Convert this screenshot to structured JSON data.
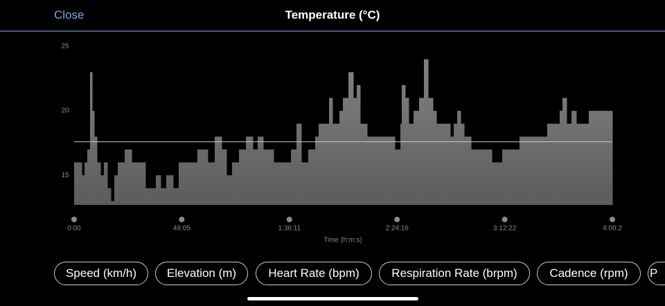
{
  "header": {
    "close": "Close",
    "title": "Temperature (°C)"
  },
  "chart_data": {
    "type": "step-area",
    "x_label": "Time (h:m:s)",
    "x": [
      0,
      204,
      279,
      353,
      427,
      483,
      538,
      613,
      706,
      798,
      891,
      984,
      1077,
      1170,
      1355,
      1541,
      1912,
      2191,
      2321,
      2469,
      2655,
      2804,
      3026,
      3305,
      3583,
      3769,
      3955,
      4085,
      4233,
      4419,
      4605,
      4790,
      4920,
      5069,
      5347,
      5533,
      5812,
      5960,
      6090,
      6276,
      6461,
      6554,
      6740,
      6833,
      6925,
      7111,
      7204,
      7353,
      7483,
      7575,
      7668,
      7761,
      7854,
      8411,
      8597,
      8745,
      8782,
      8875,
      8968,
      9098,
      9246,
      9376,
      9488,
      9618,
      9711,
      10082,
      10175,
      10268,
      10361,
      10454,
      10640,
      11196,
      11475,
      11846,
      11938,
      12310,
      12681,
      12867,
      13015,
      13090,
      13201,
      13332,
      13461,
      13795,
      14427
    ],
    "values": [
      16,
      15,
      16,
      17,
      23,
      20,
      18,
      16,
      15,
      16,
      14,
      13,
      15,
      16,
      17,
      16,
      14,
      15,
      14,
      15,
      14,
      16,
      16,
      17,
      16,
      18,
      17,
      15,
      16,
      17,
      18,
      17,
      18,
      17,
      16,
      16,
      17,
      19,
      16,
      17,
      18,
      19,
      19,
      21,
      19,
      20,
      21,
      23,
      21,
      22,
      19,
      19,
      18,
      18,
      17,
      19,
      22,
      21,
      19,
      20,
      21,
      24,
      21,
      20,
      19,
      18,
      19,
      20,
      19,
      18,
      17,
      16,
      17,
      17,
      18,
      18,
      19,
      19,
      20,
      21,
      19,
      20,
      19,
      20,
      20
    ],
    "color": "#707070",
    "reference_line": 17.6,
    "xlim": [
      0,
      14427
    ],
    "xticks": [
      {
        "value": 0,
        "label": "0:00"
      },
      {
        "value": 2885,
        "label": "48:05"
      },
      {
        "value": 5771,
        "label": "1:36:11"
      },
      {
        "value": 8656,
        "label": "2:24:16"
      },
      {
        "value": 11542,
        "label": "3:12:22"
      },
      {
        "value": 14427,
        "label": "4:00:2"
      }
    ],
    "ylim": [
      12.7,
      25
    ],
    "yticks": [
      15,
      20,
      25
    ]
  },
  "buttons": [
    "Speed (km/h)",
    "Elevation (m)",
    "Heart Rate (bpm)",
    "Respiration Rate (brpm)",
    "Cadence (rpm)",
    "P"
  ]
}
